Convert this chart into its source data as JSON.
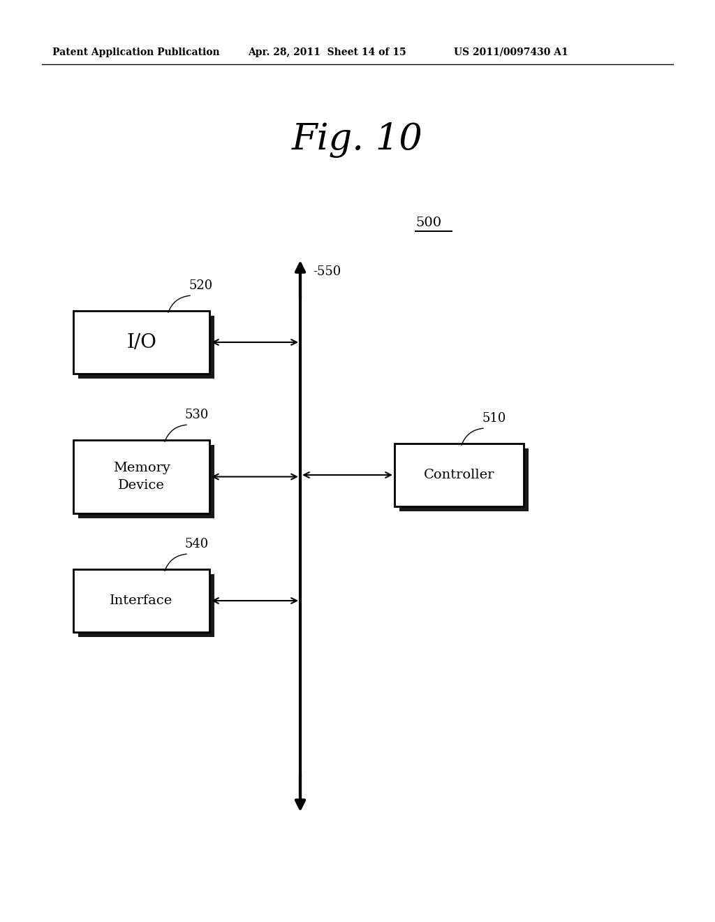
{
  "background_color": "#ffffff",
  "header_text": "Patent Application Publication",
  "header_date": "Apr. 28, 2011  Sheet 14 of 15",
  "header_patent": "US 2011/0097430 A1",
  "fig_title": "Fig. 10",
  "label_500": "500",
  "label_510": "510",
  "label_520": "520",
  "label_530": "530",
  "label_540": "540",
  "label_550": "550",
  "box_IO_label": "I/O",
  "box_memory_label": "Memory\nDevice",
  "box_interface_label": "Interface",
  "box_controller_label": "Controller",
  "text_color": "#000000",
  "arrow_color": "#000000"
}
